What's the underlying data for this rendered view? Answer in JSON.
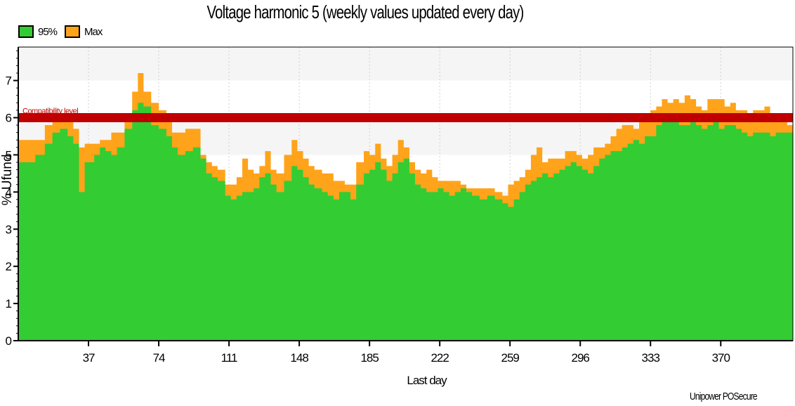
{
  "chart_data": {
    "type": "area",
    "title": "Voltage harmonic 5 (weekly values updated every day)",
    "xlabel": "Last day",
    "ylabel": "% Ufund",
    "xlim": [
      0,
      408
    ],
    "ylim": [
      0,
      7.9
    ],
    "x_ticks": [
      37,
      74,
      111,
      148,
      185,
      222,
      259,
      296,
      333,
      370
    ],
    "y_ticks": [
      0,
      1,
      2,
      3,
      4,
      5,
      6,
      7
    ],
    "grid": true,
    "legend_position": "top-left",
    "x": [
      0,
      9,
      14,
      18,
      22,
      26,
      29,
      32,
      35,
      40,
      43,
      46,
      49,
      52,
      56,
      60,
      63,
      66,
      70,
      74,
      78,
      81,
      84,
      88,
      92,
      96,
      99,
      102,
      105,
      109,
      112,
      115,
      118,
      121,
      124,
      127,
      130,
      133,
      136,
      140,
      144,
      147,
      150,
      153,
      156,
      160,
      163,
      166,
      169,
      172,
      175,
      178,
      182,
      185,
      188,
      191,
      194,
      197,
      200,
      203,
      206,
      209,
      212,
      215,
      218,
      221,
      224,
      227,
      230,
      233,
      236,
      239,
      243,
      247,
      251,
      255,
      258,
      261,
      264,
      267,
      270,
      273,
      276,
      279,
      282,
      285,
      288,
      291,
      294,
      297,
      300,
      303,
      306,
      309,
      312,
      315,
      318,
      321,
      324,
      327,
      330,
      333,
      336,
      339,
      342,
      345,
      348,
      351,
      354,
      357,
      360,
      363,
      366,
      369,
      372,
      375,
      378,
      381,
      384,
      387,
      390,
      393,
      396,
      399,
      402,
      405,
      408
    ],
    "series": [
      {
        "name": "95%",
        "color": "#33cc33",
        "values": [
          4.8,
          5.0,
          5.3,
          5.6,
          5.7,
          5.5,
          5.3,
          4.0,
          4.8,
          5.0,
          5.2,
          5.1,
          5.0,
          5.2,
          5.7,
          6.2,
          6.4,
          6.3,
          5.8,
          5.7,
          5.5,
          5.2,
          5.0,
          5.1,
          5.2,
          4.9,
          4.5,
          4.4,
          4.3,
          3.9,
          3.8,
          3.9,
          4.0,
          4.0,
          4.1,
          4.4,
          4.5,
          4.2,
          4.0,
          4.3,
          4.7,
          4.6,
          4.4,
          4.2,
          4.1,
          4.0,
          3.9,
          3.8,
          4.0,
          4.0,
          3.8,
          4.2,
          4.5,
          4.6,
          4.8,
          4.6,
          4.3,
          4.5,
          4.8,
          4.9,
          4.5,
          4.2,
          4.1,
          4.0,
          4.0,
          4.1,
          4.0,
          3.9,
          4.0,
          4.1,
          4.0,
          3.9,
          3.8,
          3.9,
          3.8,
          3.7,
          3.6,
          3.8,
          4.0,
          4.2,
          4.3,
          4.4,
          4.5,
          4.4,
          4.5,
          4.6,
          4.7,
          4.8,
          4.7,
          4.6,
          4.5,
          4.7,
          4.9,
          5.0,
          5.1,
          5.1,
          5.2,
          5.3,
          5.4,
          5.3,
          5.5,
          5.5,
          5.8,
          5.9,
          6.0,
          5.9,
          5.8,
          5.8,
          5.9,
          5.8,
          5.7,
          5.8,
          5.9,
          5.7,
          5.8,
          5.8,
          5.7,
          5.6,
          5.5,
          5.6,
          5.6,
          5.6,
          5.5,
          5.6,
          5.6,
          5.6,
          5.5
        ]
      },
      {
        "name": "Max",
        "color": "#ffa31a",
        "values": [
          5.4,
          5.4,
          5.8,
          6.0,
          6.0,
          6.0,
          5.7,
          5.2,
          5.3,
          5.3,
          5.4,
          5.4,
          5.6,
          5.6,
          6.0,
          6.7,
          7.2,
          6.7,
          6.4,
          6.2,
          5.9,
          5.6,
          5.6,
          5.7,
          5.7,
          5.0,
          4.8,
          4.7,
          4.6,
          4.2,
          4.2,
          4.4,
          4.9,
          4.6,
          4.5,
          4.7,
          5.1,
          4.6,
          4.5,
          5.0,
          5.4,
          5.1,
          4.9,
          4.7,
          4.6,
          4.5,
          4.5,
          4.3,
          4.3,
          4.2,
          4.2,
          4.8,
          5.1,
          5.0,
          5.3,
          4.9,
          4.7,
          5.0,
          5.4,
          5.2,
          4.8,
          4.6,
          4.5,
          4.6,
          4.4,
          4.3,
          4.3,
          4.3,
          4.3,
          4.2,
          4.1,
          4.1,
          4.1,
          4.1,
          4.0,
          3.9,
          4.2,
          4.3,
          4.4,
          4.6,
          5.0,
          5.2,
          4.8,
          4.9,
          4.9,
          4.9,
          5.1,
          5.1,
          5.0,
          4.9,
          5.0,
          5.2,
          5.2,
          5.3,
          5.5,
          5.7,
          5.8,
          5.8,
          5.7,
          5.9,
          6.0,
          6.2,
          6.3,
          6.5,
          6.4,
          6.5,
          6.4,
          6.6,
          6.5,
          6.3,
          6.2,
          6.5,
          6.5,
          6.5,
          6.3,
          6.4,
          6.2,
          6.2,
          6.1,
          6.2,
          6.2,
          6.3,
          6.0,
          6.0,
          5.9,
          5.8,
          5.8
        ]
      }
    ],
    "reference_line": {
      "label": "Compatibility level",
      "value": 6.0,
      "color": "#c00000"
    },
    "footer_text": "Unipower POSecure"
  }
}
